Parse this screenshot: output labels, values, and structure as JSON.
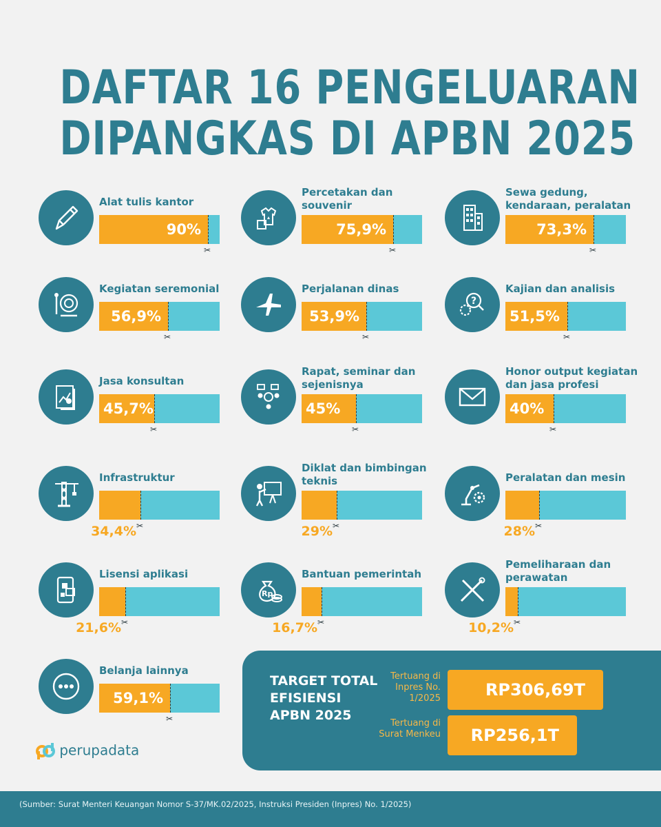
{
  "title": {
    "line1": "DAFTAR 16 PENGELUARAN",
    "line2": "DIPANGKAS DI APBN 2025"
  },
  "items": [
    {
      "label": "Alat tulis kantor",
      "value": "90%",
      "fraction": 0.9,
      "icon": "pen-icon"
    },
    {
      "label": "Percetakan dan souvenir",
      "value": "75,9%",
      "fraction": 0.759,
      "icon": "tshirt-mug-icon"
    },
    {
      "label": "Sewa gedung, kendaraan, peralatan",
      "value": "73,3%",
      "fraction": 0.733,
      "icon": "building-icon"
    },
    {
      "label": "Kegiatan seremonial",
      "value": "56,9%",
      "fraction": 0.569,
      "icon": "gong-icon"
    },
    {
      "label": "Perjalanan dinas",
      "value": "53,9%",
      "fraction": 0.539,
      "icon": "airplane-icon"
    },
    {
      "label": "Kajian dan analisis",
      "value": "51,5%",
      "fraction": 0.515,
      "icon": "gear-question-icon"
    },
    {
      "label": "Jasa konsultan",
      "value": "45,7%",
      "fraction": 0.457,
      "icon": "report-chart-icon"
    },
    {
      "label": "Rapat, seminar dan sejenisnya",
      "value": "45%",
      "fraction": 0.45,
      "icon": "meeting-icon"
    },
    {
      "label": "Honor output kegiatan dan jasa profesi",
      "value": "40%",
      "fraction": 0.4,
      "icon": "envelope-icon"
    },
    {
      "label": "Infrastruktur",
      "value": "34,4%",
      "fraction": 0.344,
      "icon": "crane-icon"
    },
    {
      "label": "Diklat dan bimbingan teknis",
      "value": "29%",
      "fraction": 0.29,
      "icon": "presentation-icon"
    },
    {
      "label": "Peralatan dan mesin",
      "value": "28%",
      "fraction": 0.28,
      "icon": "robot-arm-icon"
    },
    {
      "label": "Lisensi aplikasi",
      "value": "21,6%",
      "fraction": 0.216,
      "icon": "smartphone-apps-icon"
    },
    {
      "label": "Bantuan pemerintah",
      "value": "16,7%",
      "fraction": 0.167,
      "icon": "money-bag-icon"
    },
    {
      "label": "Pemeliharaan dan perawatan",
      "value": "10,2%",
      "fraction": 0.102,
      "icon": "wrench-screwdriver-icon"
    },
    {
      "label": "Belanja lainnya",
      "value": "59,1%",
      "fraction": 0.591,
      "icon": "more-dots-icon"
    }
  ],
  "target": {
    "title": "TARGET TOTAL EFISIENSI APBN 2025",
    "inpres_note": "Tertuang di Inpres No. 1/2025",
    "inpres_value": "RP306,69T",
    "menkeu_note": "Tertuang di Surat Menkeu",
    "menkeu_value": "RP256,1T"
  },
  "logo": "perupadata",
  "source": "(Sumber: Surat Menteri Keuangan Nomor S-37/MK.02/2025, Instruksi Presiden (Inpres) No. 1/2025)",
  "colors": {
    "teal": "#2e7d90",
    "orange": "#f7a823",
    "light_blue": "#5bc8d7",
    "background": "#f2f2f2"
  }
}
